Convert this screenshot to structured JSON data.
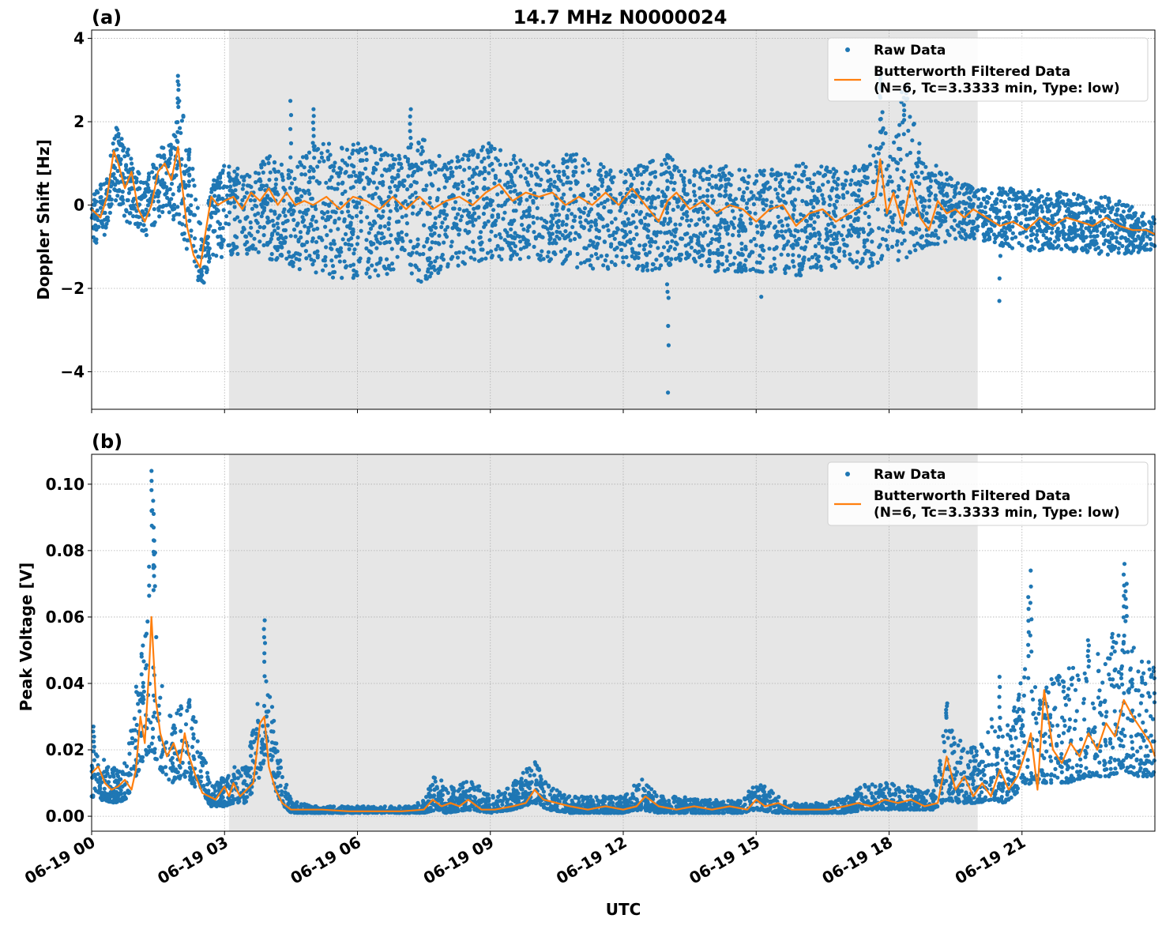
{
  "figure": {
    "title": "14.7 MHz N0000024",
    "xlabel": "UTC"
  },
  "chart_data": [
    {
      "type": "scatter",
      "panel_label": "(a)",
      "title": "14.7 MHz N0000024",
      "xlabel": "",
      "ylabel": "Doppler Shift [Hz]",
      "x_unit": "hours since 06-19 00 UTC",
      "xlim": [
        0,
        24
      ],
      "ylim": [
        -4.9,
        4.2
      ],
      "yticks": [
        4,
        2,
        0,
        -2,
        -4
      ],
      "ytick_labels": [
        "4",
        "2",
        "0",
        "−2",
        "−4"
      ],
      "grid": true,
      "legend": "top-right",
      "shaded_region": [
        3.1,
        20.0
      ],
      "series": [
        {
          "name": "Raw Data",
          "style": "points",
          "color": "#1f77b4",
          "band": {
            "x": [
              0,
              0.3,
              0.5,
              0.8,
              1.0,
              1.2,
              1.5,
              1.8,
              2.0,
              2.3,
              2.5,
              2.7,
              3.0,
              3.5,
              4.0,
              4.5,
              5.0,
              6.0,
              7.0,
              7.5,
              8.0,
              9.0,
              9.5,
              10.0,
              11.0,
              12.0,
              12.5,
              13.0,
              13.5,
              14.0,
              15.0,
              16.0,
              17.0,
              17.5,
              17.8,
              18.0,
              18.3,
              18.5,
              19.0,
              19.5,
              20.0,
              20.5,
              21.0,
              22.0,
              23.0,
              24.0
            ],
            "upper": [
              0.5,
              0.6,
              2.0,
              1.4,
              0.9,
              0.5,
              1.4,
              1.5,
              2.8,
              0.8,
              -0.8,
              0.6,
              1.0,
              0.8,
              1.2,
              0.8,
              1.5,
              1.5,
              1.2,
              1.8,
              1.0,
              1.6,
              1.2,
              1.0,
              1.3,
              0.8,
              1.0,
              1.2,
              0.8,
              1.0,
              0.8,
              1.0,
              0.9,
              1.0,
              2.8,
              1.2,
              2.8,
              2.2,
              1.0,
              0.6,
              0.4,
              0.4,
              0.4,
              0.3,
              0.2,
              -0.3
            ],
            "lower": [
              -1.0,
              -0.8,
              0.2,
              -0.4,
              -0.5,
              -0.9,
              -0.3,
              -0.2,
              -0.8,
              -1.6,
              -2.0,
              -1.2,
              -1.3,
              -1.2,
              -1.3,
              -1.5,
              -1.7,
              -1.8,
              -1.6,
              -1.9,
              -1.5,
              -1.4,
              -1.3,
              -1.3,
              -1.6,
              -1.5,
              -1.6,
              -1.5,
              -1.3,
              -1.6,
              -1.6,
              -1.7,
              -1.5,
              -1.5,
              -1.4,
              -1.2,
              -1.4,
              -1.2,
              -1.0,
              -0.9,
              -0.8,
              -1.0,
              -1.1,
              -1.1,
              -1.2,
              -1.1
            ]
          },
          "outliers": [
            {
              "x": 1.95,
              "y": 3.1
            },
            {
              "x": 4.5,
              "y": 2.5
            },
            {
              "x": 5.0,
              "y": 2.3
            },
            {
              "x": 7.2,
              "y": 2.3
            },
            {
              "x": 13.0,
              "y": -1.9
            },
            {
              "x": 13.0,
              "y": -2.9
            },
            {
              "x": 13.02,
              "y": -4.5
            },
            {
              "x": 15.1,
              "y": -2.2
            },
            {
              "x": 17.8,
              "y": 3.2
            },
            {
              "x": 18.4,
              "y": 2.9
            },
            {
              "x": 20.5,
              "y": -2.3
            }
          ]
        },
        {
          "name": "Butterworth Filtered Data\n(N=6, Tc=3.3333 min, Type: low)",
          "style": "line",
          "color": "#ff7f0e",
          "x": [
            0.0,
            0.2,
            0.35,
            0.5,
            0.6,
            0.75,
            0.9,
            1.05,
            1.2,
            1.35,
            1.5,
            1.65,
            1.8,
            1.95,
            2.05,
            2.15,
            2.3,
            2.45,
            2.55,
            2.7,
            2.85,
            3.0,
            3.2,
            3.4,
            3.6,
            3.8,
            4.0,
            4.2,
            4.4,
            4.6,
            4.8,
            5.0,
            5.3,
            5.6,
            5.9,
            6.2,
            6.5,
            6.8,
            7.1,
            7.4,
            7.7,
            8.0,
            8.3,
            8.6,
            8.9,
            9.2,
            9.5,
            9.8,
            10.1,
            10.4,
            10.7,
            11.0,
            11.3,
            11.6,
            11.9,
            12.2,
            12.5,
            12.8,
            13.0,
            13.2,
            13.5,
            13.8,
            14.1,
            14.4,
            14.7,
            15.0,
            15.3,
            15.6,
            15.9,
            16.2,
            16.5,
            16.8,
            17.1,
            17.4,
            17.7,
            17.8,
            17.95,
            18.1,
            18.3,
            18.5,
            18.7,
            18.9,
            19.1,
            19.3,
            19.5,
            19.7,
            19.9,
            20.2,
            20.5,
            20.8,
            21.1,
            21.4,
            21.7,
            22.0,
            22.3,
            22.6,
            22.9,
            23.2,
            23.5,
            23.8,
            24.0
          ],
          "y": [
            -0.1,
            -0.3,
            0.2,
            1.3,
            1.0,
            0.4,
            0.8,
            -0.1,
            -0.4,
            0.0,
            0.8,
            1.0,
            0.6,
            1.4,
            0.4,
            -0.5,
            -1.2,
            -1.5,
            -0.8,
            0.2,
            0.0,
            0.1,
            0.2,
            -0.1,
            0.3,
            0.1,
            0.4,
            0.0,
            0.3,
            0.0,
            0.1,
            0.0,
            0.2,
            -0.1,
            0.2,
            0.1,
            -0.1,
            0.2,
            -0.1,
            0.2,
            -0.1,
            0.1,
            0.2,
            0.0,
            0.3,
            0.5,
            0.1,
            0.3,
            0.2,
            0.3,
            0.0,
            0.2,
            0.0,
            0.3,
            0.0,
            0.4,
            0.0,
            -0.4,
            0.1,
            0.3,
            -0.1,
            0.1,
            -0.2,
            0.0,
            -0.1,
            -0.4,
            -0.1,
            0.0,
            -0.5,
            -0.2,
            -0.1,
            -0.4,
            -0.2,
            0.0,
            0.2,
            1.1,
            -0.2,
            0.3,
            -0.5,
            0.6,
            -0.3,
            -0.6,
            0.1,
            -0.2,
            -0.1,
            -0.3,
            -0.1,
            -0.3,
            -0.5,
            -0.4,
            -0.6,
            -0.3,
            -0.5,
            -0.3,
            -0.4,
            -0.5,
            -0.3,
            -0.5,
            -0.6,
            -0.6,
            -0.7
          ]
        }
      ]
    },
    {
      "type": "scatter",
      "panel_label": "(b)",
      "title": "",
      "xlabel": "UTC",
      "ylabel": "Peak Voltage [V]",
      "x_unit": "hours since 06-19 00 UTC",
      "xlim": [
        0,
        24
      ],
      "ylim": [
        -0.0045,
        0.109
      ],
      "yticks": [
        0.1,
        0.08,
        0.06,
        0.04,
        0.02,
        0.0
      ],
      "ytick_labels": [
        "0.10",
        "0.08",
        "0.06",
        "0.04",
        "0.02",
        "0.00"
      ],
      "xticks": [
        0,
        3,
        6,
        9,
        12,
        15,
        18,
        21
      ],
      "xtick_labels": [
        "06-19 00",
        "06-19 03",
        "06-19 06",
        "06-19 09",
        "06-19 12",
        "06-19 15",
        "06-19 18",
        "06-19 21"
      ],
      "grid": true,
      "legend": "top-right",
      "shaded_region": [
        3.1,
        20.0
      ],
      "series": [
        {
          "name": "Raw Data",
          "style": "points",
          "color": "#1f77b4",
          "band": {
            "x": [
              0,
              0.2,
              0.5,
              0.8,
              1.0,
              1.2,
              1.35,
              1.5,
              1.8,
              2.1,
              2.4,
              2.7,
              3.0,
              3.2,
              3.5,
              3.8,
              3.95,
              4.2,
              4.5,
              5.0,
              6.0,
              7.0,
              7.5,
              7.8,
              8.0,
              8.5,
              9.0,
              9.5,
              10.0,
              10.3,
              10.8,
              11.5,
              12.0,
              12.4,
              12.8,
              13.5,
              14.0,
              14.7,
              15.0,
              15.5,
              16.0,
              16.5,
              17.0,
              17.5,
              18.0,
              18.5,
              19.0,
              19.3,
              19.6,
              20.0,
              20.3,
              20.6,
              20.9,
              21.2,
              21.5,
              22.0,
              22.5,
              23.0,
              23.3,
              23.6,
              24.0
            ],
            "upper": [
              0.02,
              0.018,
              0.015,
              0.017,
              0.04,
              0.06,
              0.09,
              0.045,
              0.03,
              0.035,
              0.028,
              0.01,
              0.012,
              0.015,
              0.015,
              0.04,
              0.05,
              0.02,
              0.005,
              0.003,
              0.003,
              0.003,
              0.005,
              0.014,
              0.008,
              0.012,
              0.006,
              0.01,
              0.017,
              0.01,
              0.006,
              0.006,
              0.006,
              0.012,
              0.006,
              0.006,
              0.005,
              0.005,
              0.012,
              0.006,
              0.004,
              0.004,
              0.006,
              0.01,
              0.01,
              0.009,
              0.009,
              0.03,
              0.025,
              0.02,
              0.03,
              0.025,
              0.04,
              0.05,
              0.04,
              0.045,
              0.045,
              0.055,
              0.06,
              0.05,
              0.045
            ],
            "lower": [
              0.006,
              0.005,
              0.004,
              0.005,
              0.012,
              0.018,
              0.02,
              0.015,
              0.01,
              0.012,
              0.008,
              0.003,
              0.003,
              0.004,
              0.004,
              0.012,
              0.02,
              0.005,
              0.001,
              0.001,
              0.001,
              0.001,
              0.001,
              0.002,
              0.001,
              0.002,
              0.001,
              0.002,
              0.004,
              0.002,
              0.001,
              0.001,
              0.001,
              0.002,
              0.001,
              0.001,
              0.001,
              0.001,
              0.002,
              0.001,
              0.001,
              0.001,
              0.001,
              0.002,
              0.002,
              0.002,
              0.002,
              0.005,
              0.004,
              0.004,
              0.005,
              0.004,
              0.007,
              0.01,
              0.01,
              0.01,
              0.012,
              0.012,
              0.014,
              0.012,
              0.012
            ]
          },
          "outliers": [
            {
              "x": 1.36,
              "y": 0.104
            },
            {
              "x": 1.4,
              "y": 0.095
            },
            {
              "x": 1.42,
              "y": 0.083
            },
            {
              "x": 0.05,
              "y": 0.027
            },
            {
              "x": 2.2,
              "y": 0.035
            },
            {
              "x": 3.9,
              "y": 0.059
            },
            {
              "x": 19.3,
              "y": 0.034
            },
            {
              "x": 20.5,
              "y": 0.042
            },
            {
              "x": 21.2,
              "y": 0.074
            },
            {
              "x": 21.15,
              "y": 0.066
            },
            {
              "x": 23.3,
              "y": 0.076
            },
            {
              "x": 23.35,
              "y": 0.07
            },
            {
              "x": 22.5,
              "y": 0.053
            }
          ]
        },
        {
          "name": "Butterworth Filtered Data\n(N=6, Tc=3.3333 min, Type: low)",
          "style": "line",
          "color": "#ff7f0e",
          "x": [
            0.0,
            0.15,
            0.3,
            0.45,
            0.6,
            0.75,
            0.9,
            1.0,
            1.1,
            1.2,
            1.3,
            1.35,
            1.45,
            1.55,
            1.7,
            1.85,
            2.0,
            2.1,
            2.2,
            2.35,
            2.5,
            2.65,
            2.8,
            3.0,
            3.1,
            3.2,
            3.35,
            3.5,
            3.65,
            3.8,
            3.9,
            4.0,
            4.15,
            4.3,
            4.5,
            4.8,
            5.2,
            5.8,
            6.5,
            7.0,
            7.5,
            7.7,
            7.9,
            8.1,
            8.3,
            8.5,
            8.8,
            9.1,
            9.5,
            9.8,
            10.0,
            10.2,
            10.5,
            10.8,
            11.2,
            11.6,
            12.0,
            12.3,
            12.5,
            12.8,
            13.2,
            13.6,
            14.0,
            14.4,
            14.8,
            15.0,
            15.2,
            15.5,
            15.8,
            16.2,
            16.6,
            17.0,
            17.3,
            17.6,
            17.9,
            18.2,
            18.5,
            18.8,
            19.1,
            19.3,
            19.5,
            19.7,
            19.9,
            20.1,
            20.3,
            20.5,
            20.7,
            20.9,
            21.05,
            21.2,
            21.35,
            21.5,
            21.7,
            21.9,
            22.1,
            22.3,
            22.5,
            22.7,
            22.9,
            23.1,
            23.3,
            23.5,
            23.7,
            23.9,
            24.0
          ],
          "y": [
            0.013,
            0.015,
            0.01,
            0.008,
            0.009,
            0.011,
            0.008,
            0.014,
            0.03,
            0.022,
            0.045,
            0.06,
            0.035,
            0.025,
            0.018,
            0.022,
            0.016,
            0.025,
            0.018,
            0.012,
            0.007,
            0.006,
            0.005,
            0.009,
            0.006,
            0.01,
            0.006,
            0.008,
            0.01,
            0.028,
            0.03,
            0.015,
            0.008,
            0.004,
            0.002,
            0.002,
            0.002,
            0.0015,
            0.0015,
            0.0015,
            0.002,
            0.005,
            0.003,
            0.004,
            0.003,
            0.005,
            0.002,
            0.002,
            0.003,
            0.004,
            0.008,
            0.005,
            0.004,
            0.003,
            0.002,
            0.003,
            0.002,
            0.003,
            0.006,
            0.003,
            0.002,
            0.003,
            0.002,
            0.003,
            0.002,
            0.005,
            0.003,
            0.004,
            0.002,
            0.002,
            0.002,
            0.003,
            0.004,
            0.003,
            0.005,
            0.004,
            0.005,
            0.003,
            0.004,
            0.018,
            0.008,
            0.012,
            0.006,
            0.01,
            0.006,
            0.014,
            0.008,
            0.012,
            0.018,
            0.025,
            0.008,
            0.038,
            0.02,
            0.016,
            0.022,
            0.018,
            0.025,
            0.02,
            0.028,
            0.024,
            0.035,
            0.03,
            0.026,
            0.022,
            0.018
          ]
        }
      ]
    }
  ]
}
